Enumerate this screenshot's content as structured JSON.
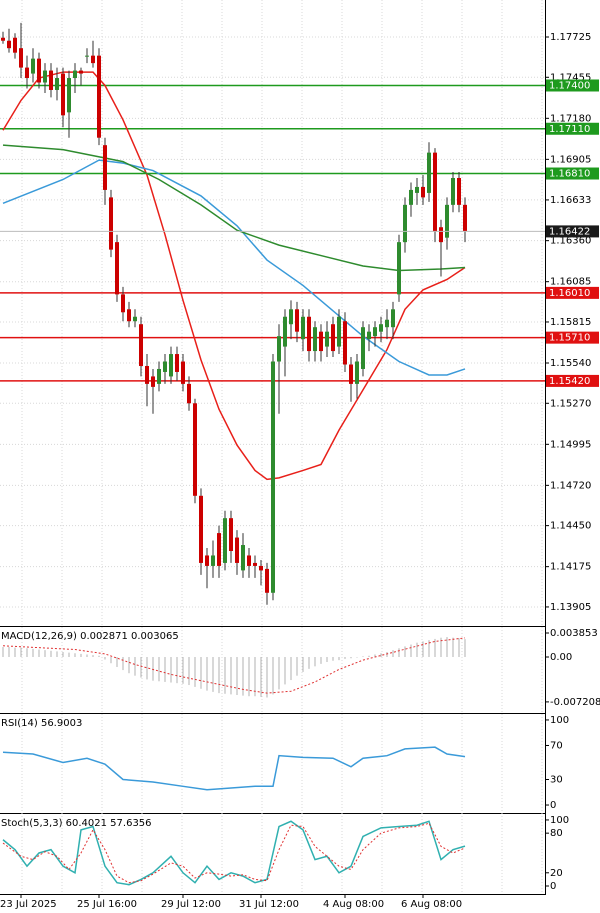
{
  "chart_data": [
    {
      "type": "candlestick",
      "categories": [
        null,
        null,
        null,
        "23 Jul 2025",
        null,
        null,
        null,
        null,
        null,
        null,
        null,
        null,
        null,
        null,
        null,
        null,
        "25 Jul 16:00",
        null,
        null,
        null,
        null,
        null,
        null,
        null,
        null,
        null,
        null,
        null,
        null,
        null,
        "29 Jul 12:00",
        null,
        null,
        null,
        null,
        null,
        null,
        null,
        null,
        null,
        null,
        null,
        null,
        "31 Jul 12:00",
        null,
        null,
        null,
        null,
        null,
        null,
        null,
        null,
        null,
        null,
        null,
        null,
        null,
        "4 Aug 08:00",
        null,
        null,
        null,
        null,
        null,
        null,
        null,
        null,
        null,
        null,
        null,
        null,
        "6 Aug 08:00",
        null,
        null,
        null,
        null,
        null,
        null,
        null
      ],
      "candles": {
        "up_color": "#2e8b2e",
        "down_color": "#cc0000",
        "open": [
          1.1772,
          1.177,
          1.1772,
          1.1765,
          1.1752,
          1.1748,
          1.1758,
          1.1742,
          1.175,
          1.1737,
          1.1748,
          1.1722,
          1.1745,
          1.175,
          1.176,
          1.176,
          1.176,
          1.17,
          1.1665,
          1.1635,
          1.16,
          1.159,
          1.1582,
          1.158,
          1.1552,
          1.1545,
          1.154,
          1.1548,
          1.1545,
          1.156,
          1.1555,
          1.154,
          1.1527,
          1.1465,
          1.1425,
          1.1418,
          1.144,
          1.142,
          1.145,
          1.1437,
          1.1415,
          1.1425,
          1.142,
          1.1418,
          1.1416,
          1.14,
          1.1555,
          1.1565,
          1.158,
          1.159,
          1.157,
          1.1585,
          1.1562,
          1.1575,
          1.1565,
          1.158,
          1.1565,
          1.1582,
          1.1553,
          1.154,
          1.155,
          1.157,
          1.1572,
          1.1575,
          1.1578,
          1.1578,
          1.16,
          1.1635,
          1.166,
          1.1668,
          1.1672,
          1.1668,
          1.1695,
          1.1645,
          1.1638,
          1.166,
          1.1678,
          1.166
        ],
        "high": [
          1.1776,
          1.1778,
          1.1775,
          1.1782,
          1.176,
          1.1765,
          1.1762,
          1.1755,
          1.1755,
          1.1752,
          1.1752,
          1.175,
          1.1755,
          1.1752,
          1.1765,
          1.177,
          1.1765,
          1.1705,
          1.167,
          1.164,
          1.1605,
          1.1595,
          1.159,
          1.1585,
          1.156,
          1.155,
          1.1555,
          1.156,
          1.1565,
          1.1565,
          1.156,
          1.1545,
          1.153,
          1.147,
          1.143,
          1.1435,
          1.1445,
          1.1455,
          1.1455,
          1.1442,
          1.144,
          1.143,
          1.1425,
          1.1422,
          1.142,
          1.156,
          1.158,
          1.159,
          1.1596,
          1.1595,
          1.159,
          1.159,
          1.1582,
          1.158,
          1.1582,
          1.1585,
          1.159,
          1.1588,
          1.1558,
          1.156,
          1.1582,
          1.158,
          1.1582,
          1.1585,
          1.159,
          1.1595,
          1.164,
          1.1665,
          1.1675,
          1.1678,
          1.168,
          1.1702,
          1.1698,
          1.165,
          1.1665,
          1.1682,
          1.1682,
          1.1665
        ],
        "low": [
          1.1768,
          1.1762,
          1.1758,
          1.1745,
          1.1738,
          1.1742,
          1.1738,
          1.1735,
          1.1732,
          1.173,
          1.1712,
          1.1705,
          1.1735,
          1.174,
          1.1755,
          1.1752,
          1.17,
          1.166,
          1.1625,
          1.1595,
          1.1582,
          1.1578,
          1.1578,
          1.1545,
          1.1525,
          1.152,
          1.1535,
          1.154,
          1.154,
          1.1542,
          1.1535,
          1.1522,
          1.146,
          1.1412,
          1.1403,
          1.141,
          1.141,
          1.1415,
          1.142,
          1.1412,
          1.141,
          1.141,
          1.141,
          1.1405,
          1.1392,
          1.1395,
          1.152,
          1.1545,
          1.157,
          1.1568,
          1.1562,
          1.1555,
          1.1555,
          1.1555,
          1.1558,
          1.1558,
          1.156,
          1.1548,
          1.1528,
          1.153,
          1.1545,
          1.1562,
          1.1565,
          1.1568,
          1.157,
          1.157,
          1.1595,
          1.1628,
          1.1652,
          1.166,
          1.166,
          1.1662,
          1.1635,
          1.1612,
          1.163,
          1.1655,
          1.1655,
          1.1635
        ],
        "close": [
          1.177,
          1.1765,
          1.1762,
          1.1752,
          1.1745,
          1.1758,
          1.1742,
          1.175,
          1.1737,
          1.1745,
          1.172,
          1.1745,
          1.175,
          1.1748,
          1.176,
          1.1755,
          1.1705,
          1.167,
          1.163,
          1.16,
          1.1588,
          1.1582,
          1.1585,
          1.1552,
          1.154,
          1.1538,
          1.155,
          1.1555,
          1.156,
          1.1548,
          1.154,
          1.1527,
          1.1465,
          1.142,
          1.1418,
          1.1425,
          1.1418,
          1.145,
          1.1428,
          1.142,
          1.1432,
          1.1418,
          1.1418,
          1.1415,
          1.14,
          1.1555,
          1.1572,
          1.1585,
          1.159,
          1.1575,
          1.1585,
          1.1562,
          1.1578,
          1.1562,
          1.1575,
          1.1562,
          1.1585,
          1.1553,
          1.154,
          1.1555,
          1.1578,
          1.1575,
          1.1578,
          1.158,
          1.1583,
          1.159,
          1.1635,
          1.166,
          1.167,
          1.1672,
          1.1665,
          1.1695,
          1.1642,
          1.1635,
          1.166,
          1.1678,
          1.166,
          1.16422
        ]
      },
      "series": [
        {
          "color": "#e8201a",
          "x": [
            0,
            3,
            6,
            10,
            15,
            17,
            20,
            24,
            27,
            30,
            33,
            36,
            39,
            42,
            44,
            46,
            50,
            53,
            56,
            60,
            64,
            67,
            70,
            74,
            77
          ],
          "values": [
            1.171,
            1.173,
            1.1745,
            1.1749,
            1.1749,
            1.174,
            1.1717,
            1.168,
            1.164,
            1.1596,
            1.1556,
            1.1523,
            1.1499,
            1.1482,
            1.1476,
            1.1477,
            1.1482,
            1.1486,
            1.1509,
            1.1536,
            1.1563,
            1.159,
            1.1603,
            1.161,
            1.1618
          ]
        },
        {
          "color": "#3a9ad9",
          "x": [
            0,
            10,
            16,
            20,
            25,
            33,
            39,
            44,
            50,
            55,
            60,
            66,
            71,
            74,
            77
          ],
          "values": [
            1.1661,
            1.1677,
            1.169,
            1.1688,
            1.1683,
            1.1666,
            1.1646,
            1.1623,
            1.1606,
            1.1589,
            1.1572,
            1.1555,
            1.1546,
            1.1546,
            1.155
          ]
        },
        {
          "color": "#2e8b2e",
          "x": [
            0,
            10,
            20,
            26,
            33,
            39,
            46,
            53,
            60,
            66,
            73,
            77
          ],
          "values": [
            1.17,
            1.1697,
            1.1689,
            1.1677,
            1.166,
            1.1643,
            1.1633,
            1.1626,
            1.1619,
            1.1616,
            1.1617,
            1.1618
          ]
        }
      ],
      "levels": [
        {
          "value": 1.174,
          "label": "1.17400",
          "color": "#1e9a1e"
        },
        {
          "value": 1.1711,
          "label": "1.17110",
          "color": "#1e9a1e"
        },
        {
          "value": 1.1681,
          "label": "1.16810",
          "color": "#1e9a1e"
        },
        {
          "value": 1.1601,
          "label": "1.16010",
          "color": "#e01010"
        },
        {
          "value": 1.1571,
          "label": "1.15710",
          "color": "#e01010"
        },
        {
          "value": 1.1542,
          "label": "1.15420",
          "color": "#e01010"
        }
      ],
      "last_price": 1.16422,
      "ylim": [
        1.13784,
        1.17973
      ],
      "yticks": [
        1.17725,
        1.17455,
        {
          "value": 1.1718,
          "label": "1.17180"
        },
        1.16905,
        1.16633,
        {
          "value": 1.1636,
          "label": "1.16360"
        },
        1.16085,
        1.15815,
        {
          "value": 1.1554,
          "label": "1.15540"
        },
        {
          "value": 1.1527,
          "label": "1.15270"
        },
        1.14995,
        {
          "value": 1.1472,
          "label": "1.14720"
        },
        {
          "value": 1.1445,
          "label": "1.14450"
        },
        1.14175,
        1.13905
      ],
      "grid": true
    },
    {
      "type": "macd",
      "title": "MACD(12,26,9) 0.002871 0.003065",
      "histogram": {
        "color": "#b0b0b0",
        "values": [
          0.0016,
          0.0016,
          0.0015,
          0.0015,
          0.0014,
          0.0013,
          0.0012,
          0.0011,
          0.001,
          0.0009,
          0.0008,
          0.0007,
          0.0006,
          0.0005,
          0.0004,
          0.0003,
          0.0002,
          -0.0004,
          -0.001,
          -0.0016,
          -0.0021,
          -0.0026,
          -0.003,
          -0.0033,
          -0.0036,
          -0.0038,
          -0.0039,
          -0.004,
          -0.0041,
          -0.0042,
          -0.0043,
          -0.0045,
          -0.0048,
          -0.0051,
          -0.0054,
          -0.0056,
          -0.0058,
          -0.0059,
          -0.006,
          -0.0061,
          -0.0062,
          -0.0063,
          -0.0063,
          -0.0064,
          -0.0065,
          -0.006,
          -0.0052,
          -0.0044,
          -0.0037,
          -0.003,
          -0.0024,
          -0.0019,
          -0.0015,
          -0.0011,
          -0.0008,
          -0.0006,
          -0.0005,
          -0.0003,
          -0.0002,
          0.0,
          0.0001,
          0.0002,
          0.0004,
          0.0006,
          0.0008,
          0.0011,
          0.0014,
          0.0017,
          0.002,
          0.0023,
          0.0025,
          0.0027,
          0.0029,
          0.0031,
          0.0032,
          0.0031,
          0.003,
          0.002871
        ]
      },
      "series": [
        {
          "color": "#e03030",
          "style": "dotted",
          "x": [
            0,
            12,
            17,
            22,
            28,
            34,
            40,
            44,
            48,
            52,
            56,
            60,
            66,
            72,
            77
          ],
          "values": [
            0.0018,
            0.0012,
            0.0005,
            -0.0012,
            -0.0028,
            -0.004,
            -0.0052,
            -0.0058,
            -0.0055,
            -0.004,
            -0.002,
            -0.0005,
            0.001,
            0.0025,
            0.003065
          ]
        }
      ],
      "ylim": [
        -0.00883,
        0.004816
      ],
      "yticks": [
        0.003853,
        {
          "value": 0,
          "label": "0.00"
        },
        -0.007208
      ]
    },
    {
      "type": "line",
      "title": "RSI(14) 56.9003",
      "series": [
        {
          "color": "#3a9ad9",
          "x": [
            0,
            5,
            10,
            14,
            17,
            20,
            25,
            30,
            34,
            38,
            42,
            45,
            46,
            50,
            55,
            58,
            60,
            64,
            67,
            72,
            74,
            77
          ],
          "values": [
            62,
            60,
            50,
            55,
            48,
            30,
            27,
            22,
            18,
            20,
            22,
            22,
            58,
            56,
            55,
            45,
            55,
            58,
            66,
            68,
            60,
            56.9003
          ]
        }
      ],
      "ylim": [
        -8.2,
        107
      ],
      "yticks": [
        100,
        70,
        30,
        0
      ]
    },
    {
      "type": "line",
      "title": "Stoch(5,3,3) 60.4021 57.6356",
      "series": [
        {
          "color": "#30b0b0",
          "x": [
            0,
            2,
            4,
            6,
            8,
            10,
            12,
            13,
            15,
            17,
            19,
            21,
            23,
            25,
            28,
            30,
            32,
            34,
            36,
            38,
            40,
            42,
            44,
            46,
            48,
            50,
            52,
            54,
            56,
            58,
            60,
            63,
            66,
            69,
            71,
            73,
            75,
            77
          ],
          "values": [
            70,
            55,
            30,
            50,
            55,
            30,
            20,
            85,
            90,
            30,
            5,
            2,
            10,
            20,
            45,
            20,
            5,
            30,
            10,
            20,
            15,
            5,
            10,
            90,
            98,
            85,
            40,
            45,
            20,
            30,
            75,
            88,
            90,
            92,
            98,
            40,
            55,
            60.4021
          ]
        },
        {
          "color": "#e03030",
          "style": "dotted",
          "x": [
            0,
            3,
            5,
            7,
            9,
            11,
            13,
            15,
            17,
            19,
            21,
            23,
            25,
            28,
            30,
            32,
            34,
            36,
            38,
            40,
            42,
            44,
            46,
            48,
            50,
            52,
            54,
            56,
            58,
            60,
            63,
            66,
            69,
            71,
            73,
            75,
            77
          ],
          "values": [
            65,
            45,
            40,
            52,
            45,
            25,
            50,
            85,
            55,
            15,
            5,
            8,
            18,
            35,
            30,
            12,
            20,
            18,
            15,
            17,
            10,
            8,
            55,
            92,
            90,
            60,
            45,
            30,
            25,
            55,
            80,
            88,
            90,
            95,
            60,
            50,
            57.6356
          ]
        }
      ],
      "ylim": [
        -10.6,
        109
      ],
      "yticks": [
        100,
        80,
        20,
        0
      ]
    }
  ]
}
